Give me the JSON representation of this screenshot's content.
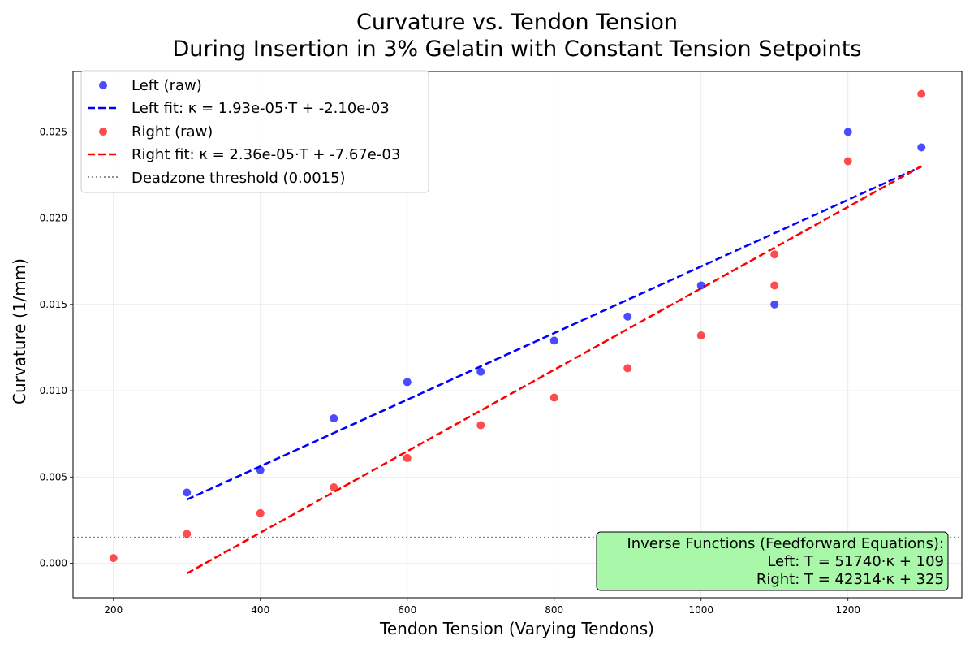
{
  "chart_data": {
    "type": "scatter",
    "title": [
      "Curvature vs. Tendon Tension",
      "During Insertion in 3% Gelatin with Constant Tension Setpoints"
    ],
    "xlabel": "Tendon Tension (Varying Tendons)",
    "ylabel": "Curvature (1/mm)",
    "xlim": [
      145,
      1355
    ],
    "ylim": [
      -0.002,
      0.0285
    ],
    "xticks": [
      200,
      400,
      600,
      800,
      1000,
      1200
    ],
    "xtick_labels": [
      "200",
      "400",
      "600",
      "800",
      "1000",
      "1200"
    ],
    "yticks": [
      0.0,
      0.005,
      0.01,
      0.015,
      0.02,
      0.025
    ],
    "ytick_labels": [
      "0.000",
      "0.005",
      "0.010",
      "0.015",
      "0.020",
      "0.025"
    ],
    "grid": true,
    "legend_position": "top-left",
    "series": [
      {
        "name": "Left (raw)",
        "kind": "points",
        "color": "#0000ff",
        "x": [
          300,
          400,
          500,
          600,
          700,
          800,
          900,
          1000,
          1100,
          1200,
          1300
        ],
        "y": [
          0.0041,
          0.0054,
          0.0084,
          0.0105,
          0.0111,
          0.0129,
          0.0143,
          0.0161,
          0.015,
          0.025,
          0.0241
        ]
      },
      {
        "name": "Left fit: κ = 1.93e-05·T + -2.10e-03",
        "kind": "line",
        "color": "#0000ff",
        "x": [
          300,
          1300
        ],
        "y": [
          0.00369,
          0.02299
        ]
      },
      {
        "name": "Right (raw)",
        "kind": "points",
        "color": "#ff0000",
        "x": [
          200,
          300,
          400,
          500,
          600,
          700,
          800,
          900,
          1000,
          1100,
          1100,
          1200,
          1300
        ],
        "y": [
          0.0003,
          0.0017,
          0.0029,
          0.0044,
          0.0061,
          0.008,
          0.0096,
          0.0113,
          0.0132,
          0.0161,
          0.0179,
          0.0233,
          0.0272
        ]
      },
      {
        "name": "Right fit: κ = 2.36e-05·T + -7.67e-03",
        "kind": "line",
        "color": "#ff0000",
        "x": [
          300,
          1300
        ],
        "y": [
          -0.00059,
          0.02301
        ]
      },
      {
        "name": "Deadzone threshold (0.0015)",
        "kind": "hline",
        "color": "#808080",
        "y": 0.0015
      }
    ],
    "annotation": {
      "lines": [
        "Inverse Functions (Feedforward Equations):",
        "Left: T = 51740·κ + 109",
        "Right: T = 42314·κ + 325"
      ],
      "background": "#a9f8a9",
      "position": "bottom-right"
    }
  }
}
